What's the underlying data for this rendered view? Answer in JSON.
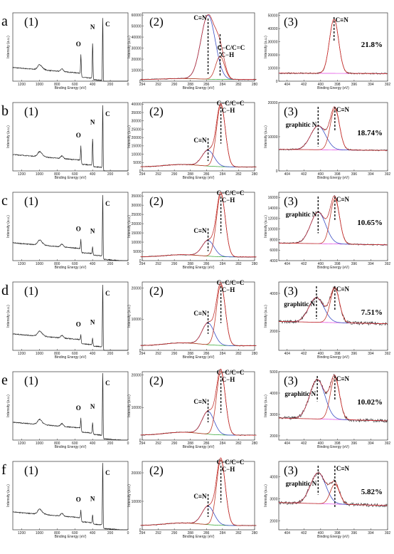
{
  "chart_data": {
    "type": "line",
    "xlabel": "Binding Energy (eV)",
    "ylabel": "Intensity (a.u.)",
    "survey": {
      "xlim": [
        1300,
        0
      ],
      "xticks": [
        1200,
        1000,
        800,
        600,
        400,
        200,
        0
      ],
      "peak_labels": [
        "O",
        "N",
        "C"
      ]
    },
    "c1s": {
      "xlim": [
        294,
        280
      ],
      "xticks": [
        294,
        292,
        290,
        288,
        286,
        284,
        282,
        280
      ],
      "peak_labels": [
        "C≡N",
        "C−C/C=C",
        "C−H"
      ],
      "colors": {
        "raw": "#222222",
        "fit": "#c0392b",
        "cn": "#3b4fc4",
        "bg": "#2aa02a",
        "sum": "#ee3333"
      }
    },
    "n1s": {
      "xlim": [
        405,
        392
      ],
      "xticks": [
        404,
        402,
        400,
        398,
        396,
        394,
        392
      ],
      "peak_labels": [
        "graphitic N",
        "C≡N"
      ],
      "colors": {
        "raw": "#222222",
        "cn": "#c0392b",
        "graphitic": "#3b4fc4",
        "bg": "#e040e0",
        "sum": "#ee3333"
      }
    },
    "rows": [
      {
        "label": "a",
        "survey_label": "(1)",
        "c1s_label": "(2)",
        "n1s_label": "(3)",
        "survey": {
          "O": 0.28,
          "N": 0.52,
          "C": 0.95,
          "base": 0.06
        },
        "c1s": {
          "yticks": [
            0,
            10000,
            20000,
            30000,
            40000,
            50000,
            60000
          ],
          "ymax": 62000,
          "cn_pos": 285.8,
          "cn_height": 58000,
          "cc_pos": 284.3,
          "cc_height": 21000,
          "bg": 1500
        },
        "n1s": {
          "yticks": [
            0,
            10000,
            20000,
            30000,
            40000,
            50000
          ],
          "ymax": 52000,
          "percent": "21.8%",
          "cn_pos": 398.4,
          "cn_height": 47000,
          "graphitic_pos": null,
          "graphitic_height": 0,
          "bg": 5800
        }
      },
      {
        "label": "b",
        "survey_label": "(1)",
        "c1s_label": "(2)",
        "n1s_label": "(3)",
        "survey": {
          "O": 0.22,
          "N": 0.4,
          "C": 0.95,
          "base": 0.1
        },
        "c1s": {
          "yticks": [
            0,
            5000,
            10000,
            15000,
            20000,
            25000,
            30000,
            35000,
            40000
          ],
          "ymax": 41000,
          "cn_pos": 285.8,
          "cn_height": 9500,
          "cc_pos": 284.2,
          "cc_height": 37000,
          "bg": 2400
        },
        "n1s": {
          "yticks": [
            0,
            10000,
            20000
          ],
          "ymax": 20000,
          "percent": "18.74%",
          "cn_pos": 398.3,
          "cn_height": 18000,
          "graphitic_pos": 400.3,
          "graphitic_height": 13000,
          "bg": 6000
        }
      },
      {
        "label": "c",
        "survey_label": "(1)",
        "c1s_label": "(2)",
        "n1s_label": "(3)",
        "survey": {
          "O": 0.14,
          "N": 0.1,
          "C": 0.92,
          "base": 0.12
        },
        "c1s": {
          "yticks": [
            0,
            5000,
            10000,
            15000,
            20000,
            25000,
            30000,
            35000
          ],
          "ymax": 37000,
          "cn_pos": 285.8,
          "cn_height": 8500,
          "cc_pos": 284.2,
          "cc_height": 34000,
          "bg": 2000
        },
        "n1s": {
          "yticks": [
            4000,
            6000,
            8000,
            10000,
            12000,
            14000,
            16000
          ],
          "ymin": 4000,
          "ymax": 17000,
          "percent": "10.65%",
          "cn_pos": 398.3,
          "cn_height": 15600,
          "graphitic_pos": 400.3,
          "graphitic_height": 13000,
          "bg": 7000
        }
      },
      {
        "label": "d",
        "survey_label": "(1)",
        "c1s_label": "(2)",
        "n1s_label": "(3)",
        "survey": {
          "O": 0.08,
          "N": 0.1,
          "C": 0.95,
          "base": 0.1
        },
        "c1s": {
          "yticks": [
            0,
            10000,
            20000
          ],
          "ymax": 22000,
          "cn_pos": 285.8,
          "cn_height": 7000,
          "cc_pos": 284.2,
          "cc_height": 19500,
          "bg": 1500
        },
        "n1s": {
          "yticks": [
            2000,
            4000
          ],
          "ymin": 1000,
          "ymax": 4600,
          "percent": "7.51%",
          "cn_pos": 398.3,
          "cn_height": 4200,
          "graphitic_pos": 400.5,
          "graphitic_height": 3700,
          "bg": 2400
        }
      },
      {
        "label": "e",
        "survey_label": "(1)",
        "c1s_label": "(2)",
        "n1s_label": "(3)",
        "survey": {
          "O": 0.15,
          "N": 0.16,
          "C": 0.95,
          "base": 0.12
        },
        "c1s": {
          "yticks": [
            0,
            10000,
            20000
          ],
          "ymax": 21000,
          "cn_pos": 285.8,
          "cn_height": 7000,
          "cc_pos": 284.2,
          "cc_height": 19500,
          "bg": 1500
        },
        "n1s": {
          "yticks": [
            2000,
            3000,
            4000,
            5000
          ],
          "ymin": 1800,
          "ymax": 5000,
          "percent": "10.02%",
          "cn_pos": 398.3,
          "cn_height": 4650,
          "graphitic_pos": 400.4,
          "graphitic_height": 4550,
          "bg": 2700
        }
      },
      {
        "label": "f",
        "survey_label": "(1)",
        "c1s_label": "(2)",
        "n1s_label": "(3)",
        "survey": {
          "O": 0.12,
          "N": 0.12,
          "C": 0.95,
          "base": 0.12
        },
        "c1s": {
          "yticks": [
            0,
            10000,
            20000
          ],
          "ymax": 24000,
          "cn_pos": 285.8,
          "cn_height": 6500,
          "cc_pos": 284.2,
          "cc_height": 23000,
          "bg": 1500
        },
        "n1s": {
          "yticks": [
            2000,
            3000,
            4000
          ],
          "ymin": 1600,
          "ymax": 4700,
          "percent": "5.82%",
          "cn_pos": 398.3,
          "cn_height": 3600,
          "graphitic_pos": 400.3,
          "graphitic_height": 4100,
          "bg": 2700
        }
      }
    ]
  }
}
